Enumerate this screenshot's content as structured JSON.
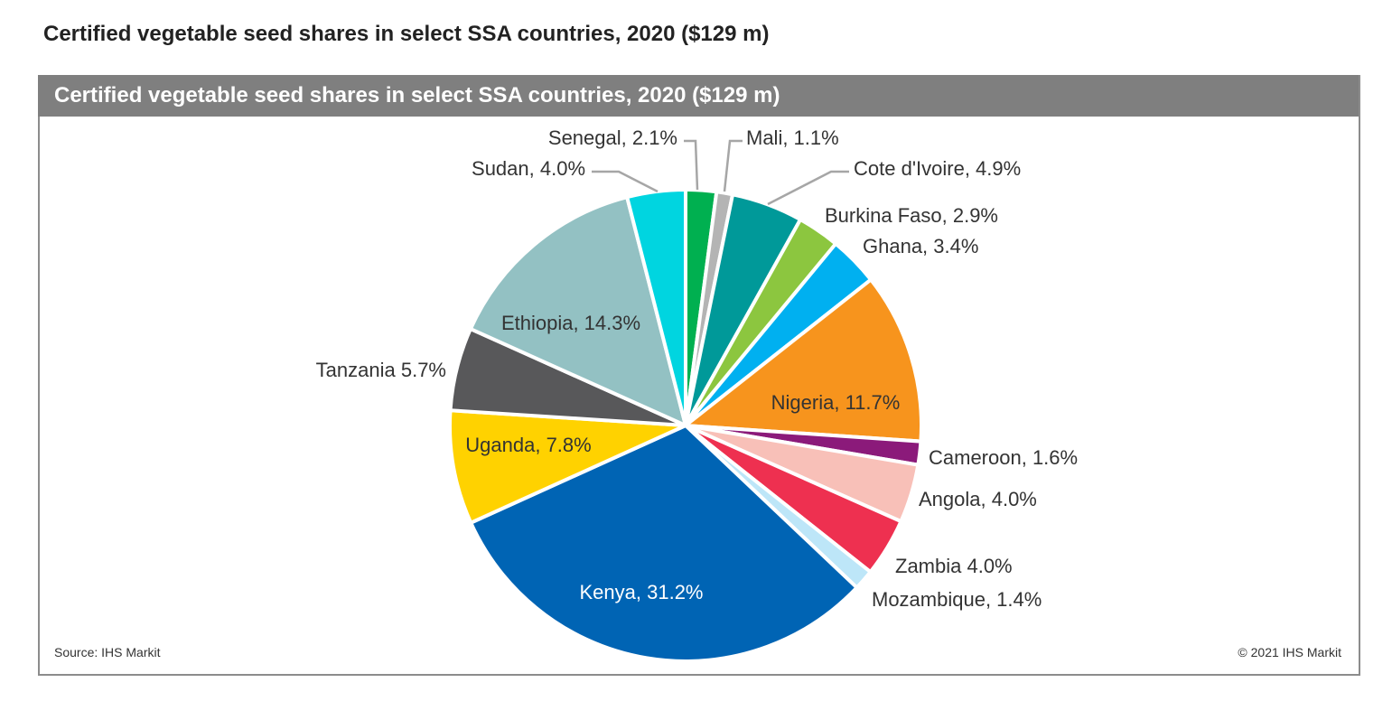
{
  "page_title": "Certified vegetable seed shares in select SSA countries, 2020 ($129 m)",
  "source": "Source: IHS Markit",
  "copyright": "© 2021 IHS Markit",
  "chart_data": {
    "type": "pie",
    "title": "Certified vegetable seed shares in select SSA countries, 2020 ($129 m)",
    "start": "12 o'clock, clockwise",
    "slices": [
      {
        "name": "Senegal",
        "value": 2.1,
        "label": "Senegal, 2.1%",
        "color": "#00b050"
      },
      {
        "name": "Mali",
        "value": 1.1,
        "label": "Mali, 1.1%",
        "color": "#b4b4b4"
      },
      {
        "name": "Cote d'Ivoire",
        "value": 4.9,
        "label": "Cote d'Ivoire, 4.9%",
        "color": "#009999"
      },
      {
        "name": "Burkina Faso",
        "value": 2.9,
        "label": "Burkina Faso, 2.9%",
        "color": "#8cc63f"
      },
      {
        "name": "Ghana",
        "value": 3.4,
        "label": "Ghana, 3.4%",
        "color": "#00b0f0"
      },
      {
        "name": "Nigeria",
        "value": 11.7,
        "label": "Nigeria, 11.7%",
        "color": "#f7941d"
      },
      {
        "name": "Cameroon",
        "value": 1.6,
        "label": "Cameroon,  1.6%",
        "color": "#8b1a7a"
      },
      {
        "name": "Angola",
        "value": 4.0,
        "label": "Angola, 4.0%",
        "color": "#f8c0b8"
      },
      {
        "name": "Zambia",
        "value": 4.0,
        "label": "Zambia  4.0%",
        "color": "#ee3050"
      },
      {
        "name": "Mozambique",
        "value": 1.4,
        "label": "Mozambique,  1.4%",
        "color": "#bde6f8"
      },
      {
        "name": "Kenya",
        "value": 31.2,
        "label": "Kenya, 31.2%",
        "color": "#0064b4"
      },
      {
        "name": "Uganda",
        "value": 7.8,
        "label": "Uganda, 7.8%",
        "color": "#ffd200"
      },
      {
        "name": "Tanzania",
        "value": 5.7,
        "label": "Tanzania  5.7%",
        "color": "#58585a"
      },
      {
        "name": "Ethiopia",
        "value": 14.3,
        "label": "Ethiopia, 14.3%",
        "color": "#93c1c3"
      },
      {
        "name": "Sudan",
        "value": 4.0,
        "label": "Sudan, 4.0%",
        "color": "#00d5e0"
      }
    ]
  }
}
